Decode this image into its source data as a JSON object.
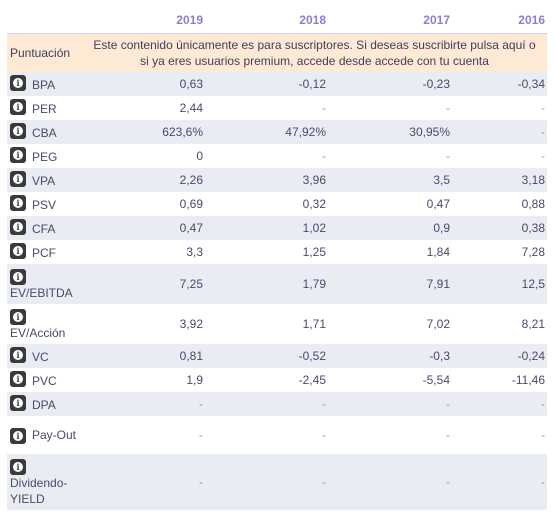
{
  "years": [
    "2019",
    "2018",
    "2017",
    "2016"
  ],
  "notice": {
    "label": "Puntuación",
    "message_line1": "Este contenido únicamente es para suscriptores. Si deseas suscribirte pulsa aquí o",
    "message_line2": "si ya eres usuarios premium, accede desde accede con tu cuenta"
  },
  "rows": [
    {
      "label": "BPA",
      "values": [
        "0,63",
        "-0,12",
        "-0,23",
        "-0,34"
      ]
    },
    {
      "label": "PER",
      "values": [
        "2,44",
        "-",
        "-",
        "-"
      ]
    },
    {
      "label": "CBA",
      "values": [
        "623,6%",
        "47,92%",
        "30,95%",
        "-"
      ]
    },
    {
      "label": "PEG",
      "values": [
        "0",
        "-",
        "-",
        "-"
      ]
    },
    {
      "label": "VPA",
      "values": [
        "2,26",
        "3,96",
        "3,5",
        "3,18"
      ]
    },
    {
      "label": "PSV",
      "values": [
        "0,69",
        "0,32",
        "0,47",
        "0,88"
      ]
    },
    {
      "label": "CFA",
      "values": [
        "0,47",
        "1,02",
        "0,9",
        "0,38"
      ]
    },
    {
      "label": "PCF",
      "values": [
        "3,3",
        "1,25",
        "1,84",
        "7,28"
      ]
    },
    {
      "label": "EV/EBITDA",
      "values": [
        "7,25",
        "1,79",
        "7,91",
        "12,5"
      ]
    },
    {
      "label": "EV/Acción",
      "values": [
        "3,92",
        "1,71",
        "7,02",
        "8,21"
      ]
    },
    {
      "label": "VC",
      "values": [
        "0,81",
        "-0,52",
        "-0,3",
        "-0,24"
      ]
    },
    {
      "label": "PVC",
      "values": [
        "1,9",
        "-2,45",
        "-5,54",
        "-11,46"
      ]
    },
    {
      "label": "DPA",
      "values": [
        "-",
        "-",
        "-",
        "-"
      ]
    },
    {
      "label": "Pay-Out",
      "values": [
        "-",
        "-",
        "-",
        "-"
      ]
    },
    {
      "label": "Dividendo-YIELD",
      "values": [
        "-",
        "-",
        "-",
        "-"
      ]
    }
  ],
  "info_icon": "info-icon"
}
